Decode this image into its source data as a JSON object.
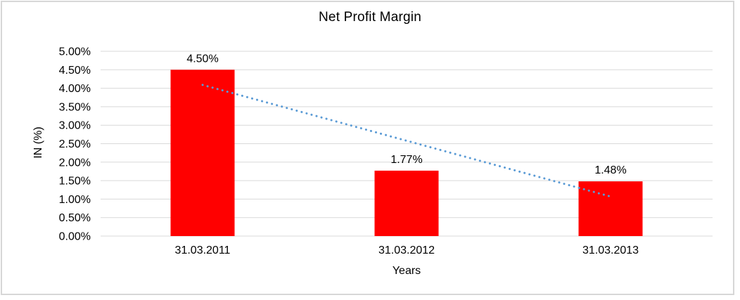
{
  "chart_data": {
    "type": "bar",
    "title": "Net Profit Margin",
    "xlabel": "Years",
    "ylabel": "IN (%)",
    "categories": [
      "31.03.2011",
      "31.03.2012",
      "31.03.2013"
    ],
    "values": [
      4.5,
      1.77,
      1.48
    ],
    "data_labels": [
      "4.50%",
      "1.77%",
      "1.48%"
    ],
    "ylim": [
      0,
      5
    ],
    "ytick_step": 0.5,
    "ytick_labels": [
      "0.00%",
      "0.50%",
      "1.00%",
      "1.50%",
      "2.00%",
      "2.50%",
      "3.00%",
      "3.50%",
      "4.00%",
      "4.50%",
      "5.00%"
    ],
    "grid": true,
    "legend": "none",
    "bar_color": "#FF0000",
    "gridline_color": "#D9D9D9",
    "trendline": {
      "style": "dotted",
      "color": "#5B9BD5",
      "start_value": 4.09,
      "end_value": 1.07
    }
  }
}
